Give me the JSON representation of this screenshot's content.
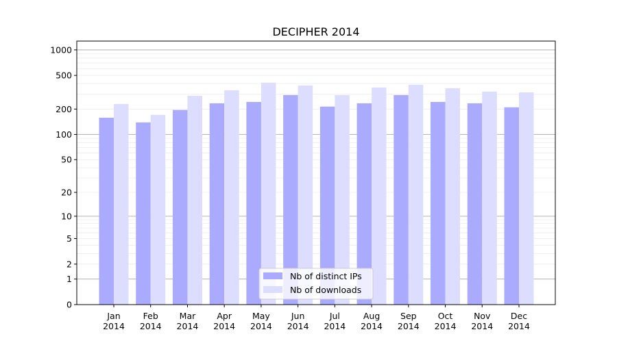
{
  "chart_data": {
    "type": "bar",
    "title": "DECIPHER 2014",
    "xlabel": "",
    "ylabel": "",
    "yscale": "symlog (log10(1+y))",
    "ylim": [
      0,
      1270
    ],
    "yticks": [
      0,
      1,
      2,
      5,
      10,
      20,
      50,
      100,
      200,
      500,
      1000
    ],
    "ytick_labels": [
      "0",
      "1",
      "2",
      "5",
      "10",
      "20",
      "50",
      "100",
      "200",
      "500",
      "1000"
    ],
    "grid": true,
    "legend_position": "bottom-center",
    "categories": [
      "Jan\n2014",
      "Feb\n2014",
      "Mar\n2014",
      "Apr\n2014",
      "May\n2014",
      "Jun\n2014",
      "Jul\n2014",
      "Aug\n2014",
      "Sep\n2014",
      "Oct\n2014",
      "Nov\n2014",
      "Dec\n2014"
    ],
    "series": [
      {
        "name": "Nb of distinct IPs",
        "color": "#aaaaff",
        "values": [
          158,
          139,
          195,
          234,
          243,
          293,
          214,
          234,
          293,
          243,
          234,
          210
        ]
      },
      {
        "name": "Nb of downloads",
        "color": "#ddddff",
        "values": [
          230,
          171,
          288,
          334,
          410,
          380,
          293,
          360,
          388,
          353,
          322,
          315
        ]
      }
    ]
  }
}
